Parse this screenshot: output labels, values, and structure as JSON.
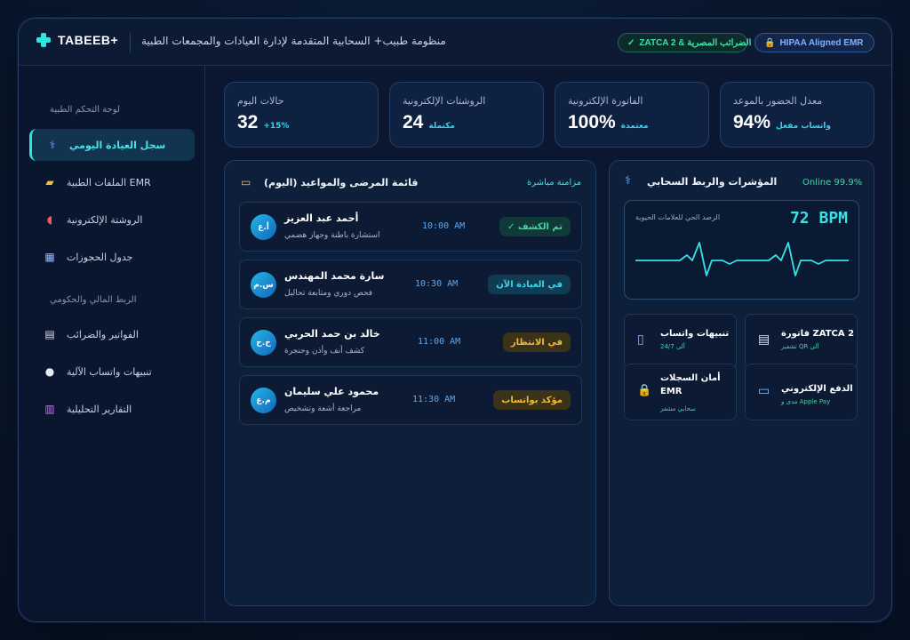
{
  "header": {
    "brand": "TABEEB+",
    "subtitle": "منظومة طبيب+ السحابية المتقدمة لإدارة العيادات والمجمعات الطبية",
    "zatca_badge": "ZATCA 2 & الضرائب المصرية",
    "zatca_check": "✓",
    "hipaa_badge": "HIPAA Aligned EMR",
    "hipaa_icon": "lock-icon"
  },
  "sidebar": {
    "section_control": "لوحة التحكم الطبية",
    "section_finance": "الربط المالي والحكومي",
    "items": [
      {
        "label": "سجل العيادة اليومي",
        "icon": "stethoscope-icon",
        "glyph": "⚕"
      },
      {
        "label": "الملفات الطبية EMR",
        "icon": "folder-icon",
        "glyph": "▰"
      },
      {
        "label": "الروشتة الإلكترونية",
        "icon": "pill-icon",
        "glyph": "◖"
      },
      {
        "label": "جدول الحجوزات",
        "icon": "calendar-icon",
        "glyph": "▦"
      },
      {
        "label": "الفواتير والضرائب",
        "icon": "receipt-icon",
        "glyph": "▤"
      },
      {
        "label": "تنبيهات واتساب الآلية",
        "icon": "chat-bubble-icon",
        "glyph": "●"
      },
      {
        "label": "التقارير التحليلية",
        "icon": "chart-icon",
        "glyph": "▥"
      }
    ]
  },
  "stats": [
    {
      "label": "حالات اليوم",
      "value": "32",
      "sub": "+15%"
    },
    {
      "label": "الروشتات الإلكترونية",
      "value": "24",
      "sub": "مكتملة"
    },
    {
      "label": "الفاتورة الإلكترونية",
      "value": "100%",
      "sub": "معتمدة"
    },
    {
      "label": "معدل الحضور بالموعد",
      "value": "94%",
      "sub": "واتساب مفعل"
    }
  ],
  "patients_panel": {
    "title": "قائمة المرضى والمواعيد (اليوم)",
    "sync": "مزامنة مباشرة",
    "rows": [
      {
        "initials": "أ.ع",
        "name": "أحمد عبد العزيز",
        "desc": "استشارة باطنة وجهاز هضمي",
        "time": "10:00 AM",
        "status": "✓ تم الكشف"
      },
      {
        "initials": "س.م",
        "name": "سارة محمد المهندس",
        "desc": "فحص دوري ومتابعة تحاليل",
        "time": "10:30 AM",
        "status": "في العيادة الآن"
      },
      {
        "initials": "خ.ح",
        "name": "خالد بن حمد الحربي",
        "desc": "كشف أنف وأذن وحنجرة",
        "time": "11:00 AM",
        "status": "في الانتظار"
      },
      {
        "initials": "م.ع",
        "name": "محمود علي سليمان",
        "desc": "مراجعة أشعة وتشخيص",
        "time": "11:30 AM",
        "status": "مؤكد بواتساب"
      }
    ]
  },
  "cloud_panel": {
    "title": "المؤشرات والربط السحابي",
    "online": "Online 99.9%",
    "vitals_label": "الرصد الحي للعلامات الحيوية",
    "bpm": "72 BPM",
    "features": [
      {
        "title": "فاتورة ZATCA 2",
        "sub": "تشفير QR آلي",
        "icon": "receipt-icon",
        "glyph": "▤"
      },
      {
        "title": "تنبيهات واتساب",
        "sub": "آلي 24/7",
        "icon": "phone-icon",
        "glyph": "▯"
      },
      {
        "title": "الدفع الإلكتروني",
        "sub": "مدى و Apple Pay",
        "icon": "card-icon",
        "glyph": "▭"
      },
      {
        "title": "أمان السجلات EMR",
        "sub": "سحابي مشفر",
        "icon": "lock-icon",
        "glyph": "🔒"
      }
    ]
  },
  "colors": {
    "accent": "#2ee6e0",
    "background": "#0b1730",
    "done": "#40d9a3",
    "waiting": "#f1b93b"
  }
}
